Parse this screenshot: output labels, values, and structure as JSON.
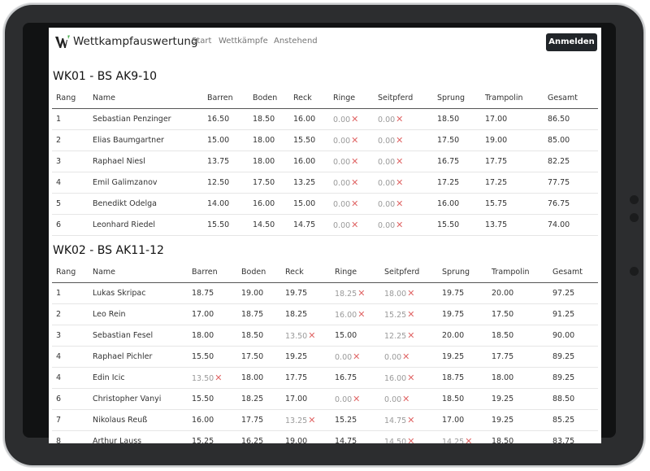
{
  "navbar": {
    "brand": "Wettkampfauswertung",
    "links": [
      "Start",
      "Wettkämpfe",
      "Anstehend"
    ],
    "login": "Anmelden"
  },
  "columns": [
    "Rang",
    "Name",
    "Barren",
    "Boden",
    "Reck",
    "Ringe",
    "Seitpferd",
    "Sprung",
    "Trampolin",
    "Gesamt"
  ],
  "competitions": [
    {
      "title": "WK01 - BS AK9-10",
      "rows": [
        {
          "rank": "1",
          "name": "Sebastian Penzinger",
          "scores": [
            {
              "v": "16.50"
            },
            {
              "v": "18.50"
            },
            {
              "v": "16.00"
            },
            {
              "v": "0.00",
              "x": true
            },
            {
              "v": "0.00",
              "x": true
            },
            {
              "v": "18.50"
            },
            {
              "v": "17.00"
            }
          ],
          "total": "86.50"
        },
        {
          "rank": "2",
          "name": "Elias Baumgartner",
          "scores": [
            {
              "v": "15.00"
            },
            {
              "v": "18.00"
            },
            {
              "v": "15.50"
            },
            {
              "v": "0.00",
              "x": true
            },
            {
              "v": "0.00",
              "x": true
            },
            {
              "v": "17.50"
            },
            {
              "v": "19.00"
            }
          ],
          "total": "85.00"
        },
        {
          "rank": "3",
          "name": "Raphael Niesl",
          "scores": [
            {
              "v": "13.75"
            },
            {
              "v": "18.00"
            },
            {
              "v": "16.00"
            },
            {
              "v": "0.00",
              "x": true
            },
            {
              "v": "0.00",
              "x": true
            },
            {
              "v": "16.75"
            },
            {
              "v": "17.75"
            }
          ],
          "total": "82.25"
        },
        {
          "rank": "4",
          "name": "Emil Galimzanov",
          "scores": [
            {
              "v": "12.50"
            },
            {
              "v": "17.50"
            },
            {
              "v": "13.25"
            },
            {
              "v": "0.00",
              "x": true
            },
            {
              "v": "0.00",
              "x": true
            },
            {
              "v": "17.25"
            },
            {
              "v": "17.25"
            }
          ],
          "total": "77.75"
        },
        {
          "rank": "5",
          "name": "Benedikt Odelga",
          "scores": [
            {
              "v": "14.00"
            },
            {
              "v": "16.00"
            },
            {
              "v": "15.00"
            },
            {
              "v": "0.00",
              "x": true
            },
            {
              "v": "0.00",
              "x": true
            },
            {
              "v": "16.00"
            },
            {
              "v": "15.75"
            }
          ],
          "total": "76.75"
        },
        {
          "rank": "6",
          "name": "Leonhard Riedel",
          "scores": [
            {
              "v": "15.50"
            },
            {
              "v": "14.50"
            },
            {
              "v": "14.75"
            },
            {
              "v": "0.00",
              "x": true
            },
            {
              "v": "0.00",
              "x": true
            },
            {
              "v": "15.50"
            },
            {
              "v": "13.75"
            }
          ],
          "total": "74.00"
        }
      ]
    },
    {
      "title": "WK02 - BS AK11-12",
      "rows": [
        {
          "rank": "1",
          "name": "Lukas Skripac",
          "scores": [
            {
              "v": "18.75"
            },
            {
              "v": "19.00"
            },
            {
              "v": "19.75"
            },
            {
              "v": "18.25",
              "x": true
            },
            {
              "v": "18.00",
              "x": true
            },
            {
              "v": "19.75"
            },
            {
              "v": "20.00"
            }
          ],
          "total": "97.25"
        },
        {
          "rank": "2",
          "name": "Leo Rein",
          "scores": [
            {
              "v": "17.00"
            },
            {
              "v": "18.75"
            },
            {
              "v": "18.25"
            },
            {
              "v": "16.00",
              "x": true
            },
            {
              "v": "15.25",
              "x": true
            },
            {
              "v": "19.75"
            },
            {
              "v": "17.50"
            }
          ],
          "total": "91.25"
        },
        {
          "rank": "3",
          "name": "Sebastian Fesel",
          "scores": [
            {
              "v": "18.00"
            },
            {
              "v": "18.50"
            },
            {
              "v": "13.50",
              "x": true
            },
            {
              "v": "15.00"
            },
            {
              "v": "12.25",
              "x": true
            },
            {
              "v": "20.00"
            },
            {
              "v": "18.50"
            }
          ],
          "total": "90.00"
        },
        {
          "rank": "4",
          "name": "Raphael Pichler",
          "scores": [
            {
              "v": "15.50"
            },
            {
              "v": "17.50"
            },
            {
              "v": "19.25"
            },
            {
              "v": "0.00",
              "x": true
            },
            {
              "v": "0.00",
              "x": true
            },
            {
              "v": "19.25"
            },
            {
              "v": "17.75"
            }
          ],
          "total": "89.25"
        },
        {
          "rank": "4",
          "name": "Edin Icic",
          "scores": [
            {
              "v": "13.50",
              "x": true
            },
            {
              "v": "18.00"
            },
            {
              "v": "17.75"
            },
            {
              "v": "16.75"
            },
            {
              "v": "16.00",
              "x": true
            },
            {
              "v": "18.75"
            },
            {
              "v": "18.00"
            }
          ],
          "total": "89.25"
        },
        {
          "rank": "6",
          "name": "Christopher Vanyi",
          "scores": [
            {
              "v": "15.50"
            },
            {
              "v": "18.25"
            },
            {
              "v": "17.00"
            },
            {
              "v": "0.00",
              "x": true
            },
            {
              "v": "0.00",
              "x": true
            },
            {
              "v": "18.50"
            },
            {
              "v": "19.25"
            }
          ],
          "total": "88.50"
        },
        {
          "rank": "7",
          "name": "Nikolaus Reuß",
          "scores": [
            {
              "v": "16.00"
            },
            {
              "v": "17.75"
            },
            {
              "v": "13.25",
              "x": true
            },
            {
              "v": "15.25"
            },
            {
              "v": "14.75",
              "x": true
            },
            {
              "v": "17.00"
            },
            {
              "v": "19.25"
            }
          ],
          "total": "85.25"
        },
        {
          "rank": "8",
          "name": "Arthur Lauss",
          "scores": [
            {
              "v": "15.25"
            },
            {
              "v": "16.25"
            },
            {
              "v": "19.00"
            },
            {
              "v": "14.75"
            },
            {
              "v": "14.50",
              "x": true
            },
            {
              "v": "14.25",
              "x": true
            },
            {
              "v": "18.50"
            }
          ],
          "total": "83.75"
        }
      ]
    }
  ],
  "colors": {
    "accent": "#212529",
    "discard_x": "#e06666",
    "logo_green": "#4caf50"
  }
}
